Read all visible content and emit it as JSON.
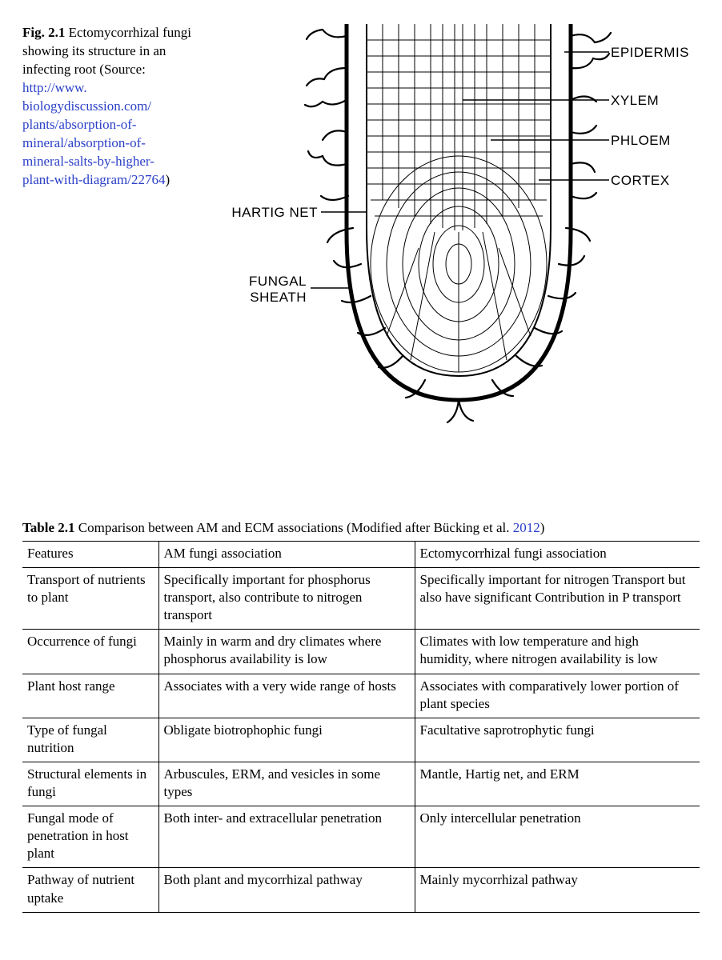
{
  "figure": {
    "label": "Fig. 2.1",
    "caption_pre": "Ectomycorrhizal fungi showing its structure in an infecting root (Source: ",
    "link_text": "http://www.\nbiologydiscussion.com/\nplants/absorption-of-\nmineral/absorption-of-\nmineral-salts-by-higher-\nplant-with-diagram/22764",
    "caption_post": ")",
    "labels": {
      "epidermis": "EPIDERMIS",
      "xylem": "XYLEM",
      "phloem": "PHLOEM",
      "cortex": "CORTEX",
      "hartig": "HARTIG NET",
      "sheath": "FUNGAL\nSHEATH"
    }
  },
  "table": {
    "label": "Table 2.1",
    "caption_text": "Comparison between AM and ECM associations (Modified after Bücking et al. ",
    "caption_year": "2012",
    "caption_post": ")",
    "headers": [
      "Features",
      "AM fungi association",
      "Ectomycorrhizal fungi association"
    ],
    "rows": [
      [
        "Transport of nutrients to plant",
        "Specifically important for phosphorus transport, also contribute to nitrogen transport",
        "Specifically important for nitrogen Transport but also have significant Contribution in P transport"
      ],
      [
        "Occurrence of fungi",
        "Mainly in warm and dry climates where phosphorus availability is low",
        "Climates with low temperature and high humidity, where nitrogen availability is low"
      ],
      [
        "Plant host range",
        "Associates with a very wide range of hosts",
        "Associates with comparatively lower portion of plant species"
      ],
      [
        "Type of fungal nutrition",
        "Obligate biotrophophic fungi",
        "Facultative saprotrophytic fungi"
      ],
      [
        "Structural elements in fungi",
        "Arbuscules, ERM, and vesicles in some types",
        "Mantle, Hartig net, and ERM"
      ],
      [
        "Fungal mode of penetration in host plant",
        "Both inter- and extracellular penetration",
        "Only intercellular penetration"
      ],
      [
        "Pathway of nutrient uptake",
        "Both plant and mycorrhizal pathway",
        "Mainly mycorrhizal pathway"
      ]
    ]
  }
}
